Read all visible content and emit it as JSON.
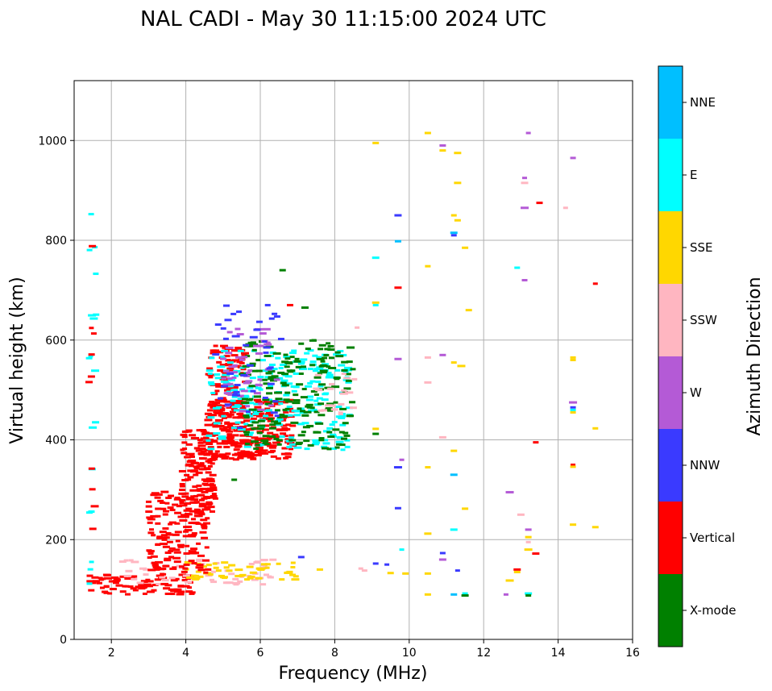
{
  "chart_data": {
    "type": "scatter",
    "title": "NAL CADI - May 30 11:15:00 2024 UTC",
    "xlabel": "Frequency (MHz)",
    "ylabel": "Virtual height (km)",
    "xlim": [
      1,
      16
    ],
    "ylim": [
      0,
      1120
    ],
    "xticks": [
      "2",
      "4",
      "6",
      "8",
      "10",
      "12",
      "14",
      "16"
    ],
    "yticks": [
      "0",
      "200",
      "400",
      "600",
      "800",
      "1000"
    ],
    "grid": true,
    "colorbar": {
      "label": "Azimuth Direction",
      "categories": [
        {
          "name": "X-mode",
          "color": "#008000"
        },
        {
          "name": "Vertical",
          "color": "#ff0000"
        },
        {
          "name": "NNW",
          "color": "#3a3aff"
        },
        {
          "name": "W",
          "color": "#b45ad6"
        },
        {
          "name": "SSW",
          "color": "#ffb6c1"
        },
        {
          "name": "SSE",
          "color": "#ffd700"
        },
        {
          "name": "E",
          "color": "#00ffff"
        },
        {
          "name": "NNE",
          "color": "#00bfff"
        }
      ]
    },
    "clusters": [
      {
        "cat": 1,
        "x": [
          1.4,
          4.2
        ],
        "y": [
          90,
          130
        ],
        "n": 90
      },
      {
        "cat": 4,
        "x": [
          2.2,
          6.5
        ],
        "y": [
          110,
          160
        ],
        "n": 60
      },
      {
        "cat": 5,
        "x": [
          4.0,
          7.0
        ],
        "y": [
          120,
          155
        ],
        "n": 50
      },
      {
        "cat": 1,
        "x": [
          3.0,
          4.6
        ],
        "y": [
          130,
          300
        ],
        "n": 160
      },
      {
        "cat": 1,
        "x": [
          3.9,
          4.8
        ],
        "y": [
          240,
          420
        ],
        "n": 140
      },
      {
        "cat": 1,
        "x": [
          4.6,
          6.9
        ],
        "y": [
          360,
          480
        ],
        "n": 260
      },
      {
        "cat": 1,
        "x": [
          4.6,
          5.6
        ],
        "y": [
          420,
          590
        ],
        "n": 110
      },
      {
        "cat": 6,
        "x": [
          4.6,
          8.4
        ],
        "y": [
          380,
          580
        ],
        "n": 220
      },
      {
        "cat": 0,
        "x": [
          5.5,
          8.5
        ],
        "y": [
          380,
          600
        ],
        "n": 200
      },
      {
        "cat": 3,
        "x": [
          5.0,
          6.5
        ],
        "y": [
          450,
          640
        ],
        "n": 50
      },
      {
        "cat": 2,
        "x": [
          4.8,
          6.6
        ],
        "y": [
          420,
          670
        ],
        "n": 40
      },
      {
        "cat": 4,
        "x": [
          7.5,
          8.6
        ],
        "y": [
          440,
          540
        ],
        "n": 20
      },
      {
        "cat": 6,
        "x": [
          1.4,
          1.6
        ],
        "y": [
          100,
          860
        ],
        "n": 18
      },
      {
        "cat": 1,
        "x": [
          1.4,
          1.6
        ],
        "y": [
          180,
          850
        ],
        "n": 10
      }
    ],
    "points": [
      {
        "x": 9.1,
        "y": 995,
        "c": 5
      },
      {
        "x": 10.5,
        "y": 1015,
        "c": 5
      },
      {
        "x": 10.9,
        "y": 990,
        "c": 3
      },
      {
        "x": 10.9,
        "y": 980,
        "c": 5
      },
      {
        "x": 11.3,
        "y": 975,
        "c": 5
      },
      {
        "x": 13.2,
        "y": 1015,
        "c": 3
      },
      {
        "x": 14.4,
        "y": 965,
        "c": 3
      },
      {
        "x": 13.1,
        "y": 925,
        "c": 3
      },
      {
        "x": 13.1,
        "y": 915,
        "c": 4
      },
      {
        "x": 11.3,
        "y": 915,
        "c": 5
      },
      {
        "x": 13.5,
        "y": 875,
        "c": 1
      },
      {
        "x": 14.2,
        "y": 865,
        "c": 4
      },
      {
        "x": 13.1,
        "y": 865,
        "c": 3
      },
      {
        "x": 9.7,
        "y": 850,
        "c": 2
      },
      {
        "x": 11.2,
        "y": 850,
        "c": 5
      },
      {
        "x": 11.3,
        "y": 840,
        "c": 5
      },
      {
        "x": 11.2,
        "y": 815,
        "c": 7
      },
      {
        "x": 11.2,
        "y": 810,
        "c": 2
      },
      {
        "x": 9.7,
        "y": 798,
        "c": 7
      },
      {
        "x": 11.5,
        "y": 785,
        "c": 5
      },
      {
        "x": 9.1,
        "y": 765,
        "c": 6
      },
      {
        "x": 10.5,
        "y": 748,
        "c": 5
      },
      {
        "x": 12.9,
        "y": 745,
        "c": 6
      },
      {
        "x": 13.1,
        "y": 720,
        "c": 3
      },
      {
        "x": 15.0,
        "y": 713,
        "c": 1
      },
      {
        "x": 9.7,
        "y": 705,
        "c": 1
      },
      {
        "x": 6.6,
        "y": 740,
        "c": 0
      },
      {
        "x": 9.1,
        "y": 675,
        "c": 5
      },
      {
        "x": 9.1,
        "y": 670,
        "c": 6
      },
      {
        "x": 11.6,
        "y": 660,
        "c": 5
      },
      {
        "x": 8.6,
        "y": 625,
        "c": 4
      },
      {
        "x": 10.9,
        "y": 570,
        "c": 3
      },
      {
        "x": 10.5,
        "y": 565,
        "c": 4
      },
      {
        "x": 11.2,
        "y": 555,
        "c": 5
      },
      {
        "x": 11.4,
        "y": 548,
        "c": 5
      },
      {
        "x": 9.7,
        "y": 562,
        "c": 3
      },
      {
        "x": 14.4,
        "y": 565,
        "c": 5
      },
      {
        "x": 14.4,
        "y": 560,
        "c": 5
      },
      {
        "x": 10.5,
        "y": 515,
        "c": 4
      },
      {
        "x": 14.4,
        "y": 475,
        "c": 3
      },
      {
        "x": 14.4,
        "y": 465,
        "c": 2
      },
      {
        "x": 14.4,
        "y": 460,
        "c": 6
      },
      {
        "x": 14.4,
        "y": 455,
        "c": 5
      },
      {
        "x": 15.0,
        "y": 423,
        "c": 5
      },
      {
        "x": 9.1,
        "y": 422,
        "c": 5
      },
      {
        "x": 9.1,
        "y": 412,
        "c": 0
      },
      {
        "x": 10.9,
        "y": 405,
        "c": 4
      },
      {
        "x": 13.4,
        "y": 395,
        "c": 1
      },
      {
        "x": 11.2,
        "y": 378,
        "c": 5
      },
      {
        "x": 9.8,
        "y": 360,
        "c": 3
      },
      {
        "x": 9.7,
        "y": 345,
        "c": 2
      },
      {
        "x": 10.5,
        "y": 345,
        "c": 5
      },
      {
        "x": 14.4,
        "y": 350,
        "c": 1
      },
      {
        "x": 14.4,
        "y": 346,
        "c": 5
      },
      {
        "x": 11.2,
        "y": 330,
        "c": 7
      },
      {
        "x": 12.7,
        "y": 295,
        "c": 3
      },
      {
        "x": 9.7,
        "y": 263,
        "c": 2
      },
      {
        "x": 11.5,
        "y": 262,
        "c": 5
      },
      {
        "x": 13.0,
        "y": 250,
        "c": 4
      },
      {
        "x": 14.4,
        "y": 230,
        "c": 5
      },
      {
        "x": 15.0,
        "y": 225,
        "c": 5
      },
      {
        "x": 11.2,
        "y": 220,
        "c": 6
      },
      {
        "x": 13.2,
        "y": 220,
        "c": 3
      },
      {
        "x": 10.5,
        "y": 212,
        "c": 5
      },
      {
        "x": 13.2,
        "y": 205,
        "c": 5
      },
      {
        "x": 13.2,
        "y": 195,
        "c": 4
      },
      {
        "x": 9.8,
        "y": 180,
        "c": 6
      },
      {
        "x": 13.2,
        "y": 180,
        "c": 5
      },
      {
        "x": 13.4,
        "y": 172,
        "c": 1
      },
      {
        "x": 10.9,
        "y": 173,
        "c": 2
      },
      {
        "x": 7.1,
        "y": 165,
        "c": 2
      },
      {
        "x": 10.9,
        "y": 160,
        "c": 3
      },
      {
        "x": 9.1,
        "y": 152,
        "c": 2
      },
      {
        "x": 9.4,
        "y": 150,
        "c": 2
      },
      {
        "x": 7.6,
        "y": 140,
        "c": 5
      },
      {
        "x": 8.8,
        "y": 138,
        "c": 4
      },
      {
        "x": 8.7,
        "y": 142,
        "c": 4
      },
      {
        "x": 9.5,
        "y": 133,
        "c": 5
      },
      {
        "x": 9.9,
        "y": 132,
        "c": 5
      },
      {
        "x": 10.5,
        "y": 132,
        "c": 5
      },
      {
        "x": 11.3,
        "y": 138,
        "c": 2
      },
      {
        "x": 12.9,
        "y": 140,
        "c": 1
      },
      {
        "x": 12.9,
        "y": 135,
        "c": 5
      },
      {
        "x": 12.7,
        "y": 118,
        "c": 5
      },
      {
        "x": 10.5,
        "y": 90,
        "c": 5
      },
      {
        "x": 11.2,
        "y": 90,
        "c": 7
      },
      {
        "x": 11.5,
        "y": 92,
        "c": 6
      },
      {
        "x": 11.5,
        "y": 88,
        "c": 0
      },
      {
        "x": 12.6,
        "y": 90,
        "c": 3
      },
      {
        "x": 13.2,
        "y": 92,
        "c": 6
      },
      {
        "x": 13.2,
        "y": 88,
        "c": 0
      },
      {
        "x": 6.2,
        "y": 670,
        "c": 2
      },
      {
        "x": 6.8,
        "y": 670,
        "c": 1
      },
      {
        "x": 7.2,
        "y": 665,
        "c": 0
      },
      {
        "x": 5.3,
        "y": 320,
        "c": 0
      }
    ]
  }
}
